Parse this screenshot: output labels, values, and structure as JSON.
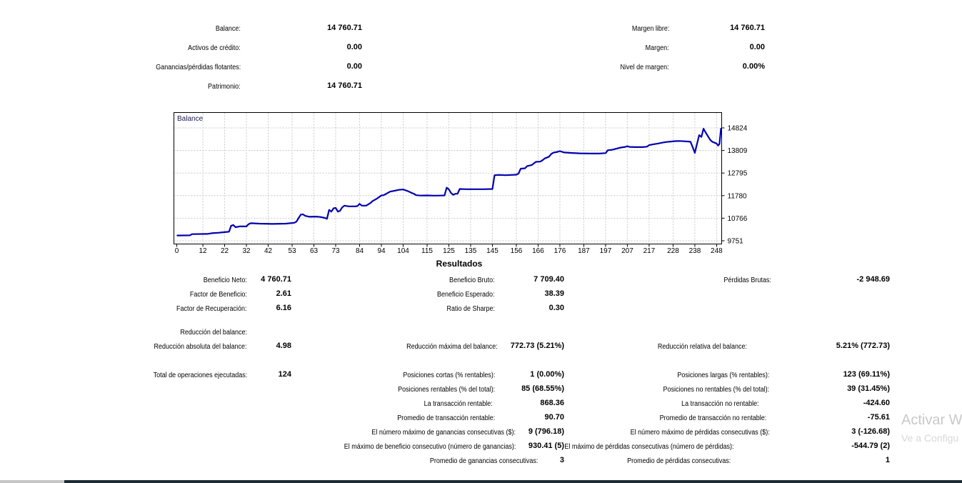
{
  "account_summary": {
    "rows": [
      {
        "left": {
          "label": "Balance:",
          "value": "14 760.71"
        },
        "right": {
          "label": "Margen libre:",
          "value": "14 760.71"
        }
      },
      {
        "left": {
          "label": "Activos de crédito:",
          "value": "0.00"
        },
        "right": {
          "label": "Margen:",
          "value": "0.00"
        }
      },
      {
        "left": {
          "label": "Ganancias/pérdidas flotantes:",
          "value": "0.00"
        },
        "right": {
          "label": "Nivel de margen:",
          "value": "0.00%"
        }
      },
      {
        "left": {
          "label": "Patrimonio:",
          "value": "14 760.71"
        },
        "right": null
      }
    ]
  },
  "results": {
    "heading": "Resultados",
    "rows": [
      {
        "c1": {
          "label": "Beneficio Neto:",
          "value": "4 760.71"
        },
        "c2": {
          "label": "Beneficio Bruto:",
          "value": "7 709.40"
        },
        "c3": {
          "label": "Pérdidas Brutas:",
          "value": "-2 948.69"
        }
      },
      {
        "c1": {
          "label": "Factor de Beneficio:",
          "value": "2.61"
        },
        "c2": {
          "label": "Beneficio Esperado:",
          "value": "38.39"
        },
        "c3": null
      },
      {
        "c1": {
          "label": "Factor de Recuperación:",
          "value": "6.16"
        },
        "c2": {
          "label": "Ratio de Sharpe:",
          "value": "0.30"
        },
        "c3": null
      },
      {
        "c1": {
          "label": "Reducción del balance:",
          "value": ""
        },
        "c2": null,
        "c3": null
      },
      {
        "c1": {
          "label": "Reducción absoluta del balance:",
          "value": "4.98"
        },
        "c2": {
          "label": "Reducción máxima del balance:",
          "value": "772.73 (5.21%)"
        },
        "c3": {
          "label": "Reducción relativa del balance:",
          "value": "5.21% (772.73)"
        }
      },
      {
        "c1": {
          "label": "Total de operaciones ejecutadas:",
          "value": "124"
        },
        "c2": {
          "label": "Posiciones cortas (% rentables):",
          "value": "1 (0.00%)"
        },
        "c3": {
          "label": "Posiciones largas (% rentables):",
          "value": "123 (69.11%)"
        }
      },
      {
        "c1": null,
        "c2": {
          "label": "Posiciones rentables (% del total):",
          "value": "85 (68.55%)"
        },
        "c3": {
          "label": "Posiciones no rentables (% del total):",
          "value": "39 (31.45%)"
        }
      },
      {
        "c1": null,
        "c2": {
          "label": "La transacción rentable:",
          "value": "868.36"
        },
        "c3": {
          "label": "La transacción no rentable:",
          "value": "-424.60"
        }
      },
      {
        "c1": null,
        "c2": {
          "label": "Promedio de transacción rentable:",
          "value": "90.70"
        },
        "c3": {
          "label": "Promedio de transacción no rentable:",
          "value": "-75.61"
        }
      },
      {
        "c1": null,
        "c2": {
          "label": "El número máximo de ganancias consecutivas ($):",
          "value": "9 (796.18)"
        },
        "c3": {
          "label": "El número máximo de pérdidas consecutivas ($):",
          "value": "3 (-126.68)"
        }
      },
      {
        "c1": null,
        "c2": {
          "label": "El máximo de beneficio consecutivo (número de ganancias):",
          "value": "930.41 (5)"
        },
        "c3": {
          "label": "El máximo de pérdidas consecutivas (número de pérdidas):",
          "value": "-544.79 (2)"
        }
      },
      {
        "c1": null,
        "c2": {
          "label": "Promedio de ganancias consecutivas:",
          "value": "3"
        },
        "c3": {
          "label": "Promedio de pérdidas consecutivas:",
          "value": "1"
        }
      }
    ]
  },
  "chart_data": {
    "type": "line",
    "title": "Balance",
    "legend": "Balance",
    "xlabel": "",
    "ylabel": "",
    "grid": true,
    "xlim": [
      0,
      251
    ],
    "ylim": [
      9751,
      14824
    ],
    "x_ticks": [
      0,
      12,
      22,
      32,
      42,
      53,
      63,
      73,
      84,
      94,
      104,
      115,
      125,
      135,
      145,
      156,
      166,
      176,
      187,
      197,
      207,
      217,
      228,
      238,
      248
    ],
    "y_ticks": [
      14824,
      13809,
      12795,
      11780,
      10766,
      9751
    ],
    "line_color": "#0000b0",
    "series": [
      {
        "name": "Balance",
        "points": [
          [
            0,
            9990
          ],
          [
            6,
            9995
          ],
          [
            7,
            10050
          ],
          [
            14,
            10060
          ],
          [
            16,
            10090
          ],
          [
            19,
            10110
          ],
          [
            22,
            10140
          ],
          [
            24,
            10160
          ],
          [
            25,
            10430
          ],
          [
            26,
            10460
          ],
          [
            27,
            10360
          ],
          [
            29,
            10400
          ],
          [
            32,
            10395
          ],
          [
            33,
            10500
          ],
          [
            34,
            10540
          ],
          [
            38,
            10520
          ],
          [
            44,
            10510
          ],
          [
            50,
            10520
          ],
          [
            54,
            10560
          ],
          [
            55,
            10610
          ],
          [
            56,
            10780
          ],
          [
            57,
            10930
          ],
          [
            58,
            10940
          ],
          [
            59,
            10870
          ],
          [
            61,
            10830
          ],
          [
            64,
            10840
          ],
          [
            66,
            10820
          ],
          [
            68,
            10780
          ],
          [
            69,
            10740
          ],
          [
            70,
            11140
          ],
          [
            71,
            11060
          ],
          [
            72,
            11210
          ],
          [
            73,
            11230
          ],
          [
            74,
            11060
          ],
          [
            75,
            11100
          ],
          [
            76,
            11250
          ],
          [
            77,
            11330
          ],
          [
            79,
            11300
          ],
          [
            82,
            11300
          ],
          [
            83,
            11310
          ],
          [
            84,
            11410
          ],
          [
            85,
            11330
          ],
          [
            87,
            11330
          ],
          [
            89,
            11450
          ],
          [
            90,
            11540
          ],
          [
            92,
            11650
          ],
          [
            93,
            11720
          ],
          [
            94,
            11790
          ],
          [
            95,
            11800
          ],
          [
            96,
            11850
          ],
          [
            98,
            11960
          ],
          [
            100,
            12000
          ],
          [
            102,
            12040
          ],
          [
            104,
            12055
          ],
          [
            106,
            11990
          ],
          [
            108,
            11900
          ],
          [
            109,
            11860
          ],
          [
            110,
            11800
          ],
          [
            112,
            11785
          ],
          [
            115,
            11790
          ],
          [
            118,
            11780
          ],
          [
            121,
            11785
          ],
          [
            123,
            11790
          ],
          [
            124,
            12140
          ],
          [
            125,
            12060
          ],
          [
            126,
            11900
          ],
          [
            127,
            11820
          ],
          [
            128,
            11860
          ],
          [
            129,
            11870
          ],
          [
            130,
            12080
          ],
          [
            133,
            12070
          ],
          [
            137,
            12070
          ],
          [
            141,
            12070
          ],
          [
            145,
            12080
          ],
          [
            146,
            12700
          ],
          [
            148,
            12710
          ],
          [
            151,
            12700
          ],
          [
            154,
            12710
          ],
          [
            156,
            12720
          ],
          [
            157,
            12770
          ],
          [
            158,
            12990
          ],
          [
            160,
            13010
          ],
          [
            161,
            13110
          ],
          [
            163,
            13150
          ],
          [
            165,
            13300
          ],
          [
            167,
            13310
          ],
          [
            168,
            13370
          ],
          [
            169,
            13450
          ],
          [
            171,
            13530
          ],
          [
            172,
            13650
          ],
          [
            173,
            13710
          ],
          [
            175,
            13750
          ],
          [
            176,
            13780
          ],
          [
            178,
            13720
          ],
          [
            181,
            13700
          ],
          [
            185,
            13680
          ],
          [
            190,
            13670
          ],
          [
            194,
            13670
          ],
          [
            197,
            13690
          ],
          [
            198,
            13820
          ],
          [
            200,
            13840
          ],
          [
            202,
            13890
          ],
          [
            204,
            13940
          ],
          [
            206,
            13970
          ],
          [
            207,
            14000
          ],
          [
            208,
            13970
          ],
          [
            211,
            13960
          ],
          [
            214,
            13960
          ],
          [
            216,
            13980
          ],
          [
            217,
            14050
          ],
          [
            219,
            14090
          ],
          [
            221,
            14120
          ],
          [
            223,
            14160
          ],
          [
            225,
            14190
          ],
          [
            227,
            14210
          ],
          [
            229,
            14230
          ],
          [
            231,
            14235
          ],
          [
            233,
            14225
          ],
          [
            235,
            14210
          ],
          [
            236,
            14200
          ],
          [
            237,
            13960
          ],
          [
            238,
            13700
          ],
          [
            239,
            14110
          ],
          [
            240,
            14500
          ],
          [
            241,
            14420
          ],
          [
            242,
            14790
          ],
          [
            243,
            14610
          ],
          [
            244,
            14450
          ],
          [
            245,
            14290
          ],
          [
            246,
            14200
          ],
          [
            247,
            14160
          ],
          [
            248,
            14120
          ],
          [
            248.7,
            14030
          ],
          [
            249.3,
            14100
          ],
          [
            250,
            14790
          ],
          [
            250.5,
            14760
          ]
        ]
      }
    ]
  },
  "watermark": {
    "line1": "Activar W",
    "line2": "Ve a Configu"
  }
}
